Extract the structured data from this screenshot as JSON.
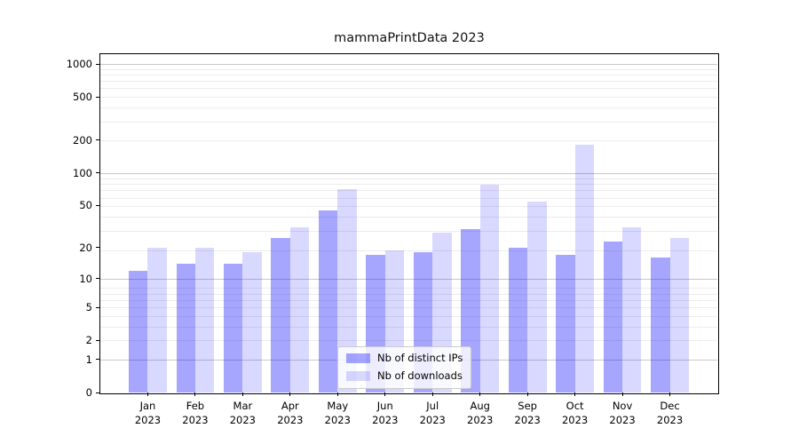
{
  "figure": {
    "title": "mammaPrintData 2023"
  },
  "chart_data": {
    "type": "bar",
    "title": "mammaPrintData 2023",
    "categories": [
      "Jan",
      "Feb",
      "Mar",
      "Apr",
      "May",
      "Jun",
      "Jul",
      "Aug",
      "Sep",
      "Oct",
      "Nov",
      "Dec"
    ],
    "x_year": "2023",
    "series": [
      {
        "name": "Nb of distinct IPs",
        "color": "rgba(0,0,255,0.35)",
        "hex_on_white": "#a6a6ff",
        "values": [
          12,
          14,
          14,
          25,
          45,
          17,
          18,
          30,
          20,
          17,
          23,
          16
        ]
      },
      {
        "name": "Nb of downloads",
        "color": "rgba(0,0,255,0.15)",
        "hex_on_white": "#d9d9ff",
        "values": [
          20,
          20,
          18,
          31,
          71,
          19,
          28,
          78,
          54,
          182,
          31,
          25
        ]
      }
    ],
    "yscale": "log1p",
    "yticks": [
      0,
      1,
      2,
      5,
      10,
      20,
      50,
      100,
      200,
      500,
      1000
    ],
    "ylim": [
      0,
      1275
    ],
    "grid": {
      "horizontal": true,
      "major_at": [
        1,
        10,
        100,
        1000
      ],
      "minor": "log-decade subdivisions"
    },
    "legend": {
      "location": "lower center"
    }
  },
  "colors": {
    "background": "#ffffff",
    "spine": "#000000",
    "text": "#000000",
    "major_grid": "#c9c9c9",
    "minor_grid": "#ececec",
    "bar_distinct_ips": "#a6a6ff",
    "bar_downloads": "#d9d9ff"
  }
}
